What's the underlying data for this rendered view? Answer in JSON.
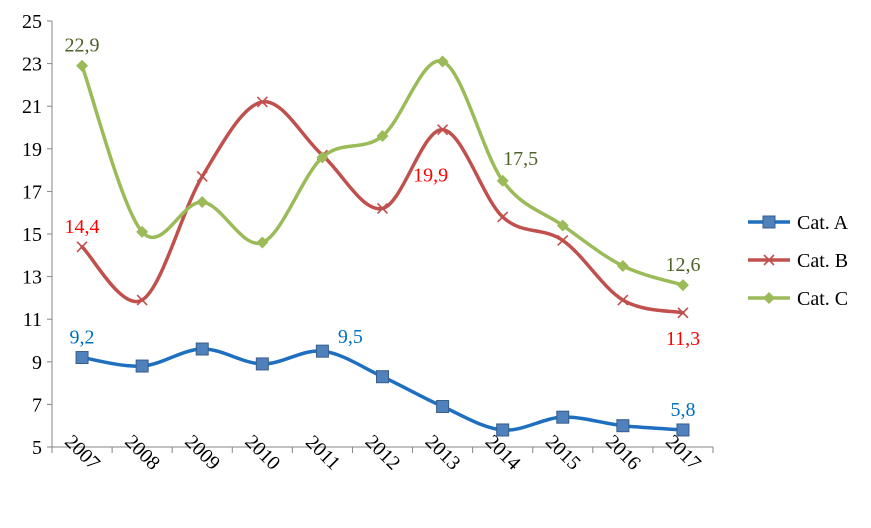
{
  "chart_data": {
    "type": "line",
    "title": "",
    "xlabel": "",
    "ylabel": "",
    "categories": [
      "2007",
      "2008",
      "2009",
      "2010",
      "2011",
      "2012",
      "2013",
      "2014",
      "2015",
      "2016",
      "2017"
    ],
    "ylim": [
      5,
      25
    ],
    "yticks": [
      5,
      7,
      9,
      11,
      13,
      15,
      17,
      19,
      21,
      23,
      25
    ],
    "grid": false,
    "legend_position": "right",
    "series": [
      {
        "name": "Cat. A",
        "color": "#1F6FC0",
        "label_color": "#0070C0",
        "marker": "square",
        "values": [
          9.2,
          8.8,
          9.6,
          8.9,
          9.5,
          8.3,
          6.9,
          5.8,
          6.4,
          6.0,
          5.8
        ],
        "labels": [
          {
            "index": 0,
            "text": "9,2"
          },
          {
            "index": 4,
            "text": "9,5"
          },
          {
            "index": 10,
            "text": "5,8"
          }
        ]
      },
      {
        "name": "Cat. B",
        "color": "#C0504D",
        "label_color": "#FF0000",
        "marker": "x",
        "values": [
          14.4,
          11.9,
          17.7,
          21.2,
          18.7,
          16.2,
          19.9,
          15.8,
          14.7,
          11.9,
          11.3
        ],
        "labels": [
          {
            "index": 0,
            "text": "14,4"
          },
          {
            "index": 6,
            "text": "19,9"
          },
          {
            "index": 10,
            "text": "11,3"
          }
        ]
      },
      {
        "name": "Cat. C",
        "color": "#9BBB59",
        "label_color": "#4F6228",
        "marker": "diamond",
        "values": [
          22.9,
          15.1,
          16.5,
          14.6,
          18.6,
          19.6,
          23.1,
          17.5,
          15.4,
          13.5,
          12.6
        ],
        "labels": [
          {
            "index": 0,
            "text": "22,9"
          },
          {
            "index": 7,
            "text": "17,5"
          },
          {
            "index": 10,
            "text": "12,6"
          }
        ]
      }
    ]
  }
}
